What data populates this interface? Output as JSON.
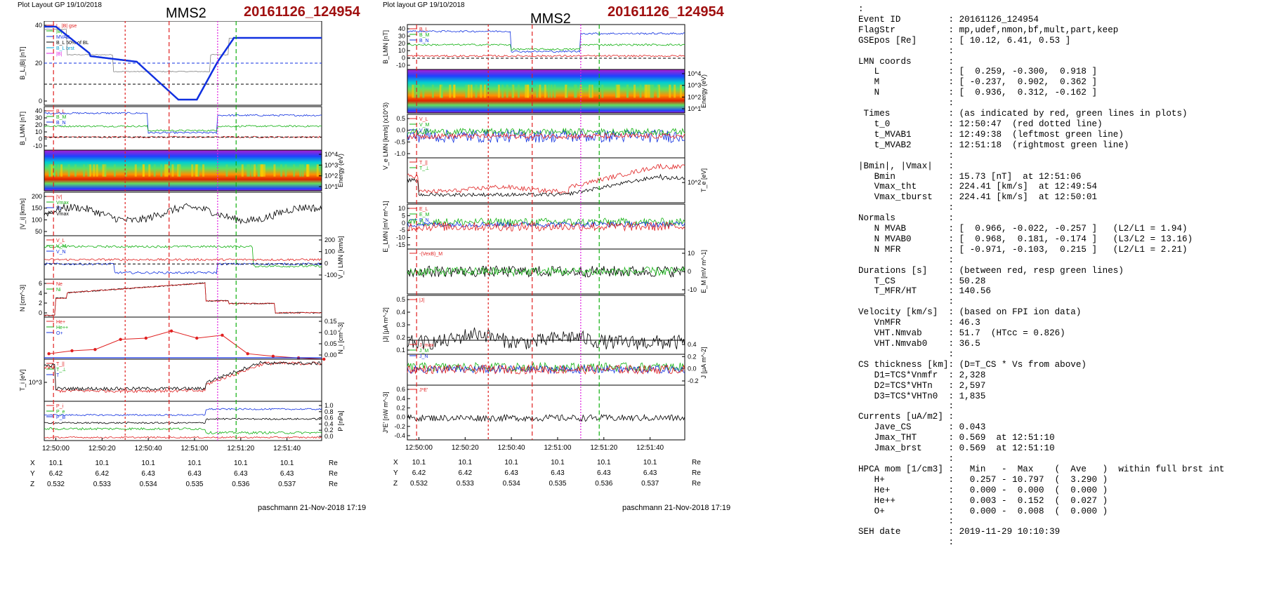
{
  "left_figure": {
    "header": "Plot Layout GP 19/10/2018",
    "title": "MMS2",
    "event_id": "20161126_124954",
    "footer": "paschmann 21-Nov-2018 17:19",
    "time_ticks": [
      "12:50:00",
      "12:50:20",
      "12:50:40",
      "12:51:00",
      "12:51:20",
      "12:51:40"
    ],
    "ephemeris": {
      "X": {
        "label": "X",
        "values": [
          "10.1",
          "10.1",
          "10.1",
          "10.1",
          "10.1",
          "10.1"
        ],
        "unit": "Re"
      },
      "Y": {
        "label": "Y",
        "values": [
          "6.42",
          "6.42",
          "6.43",
          "6.43",
          "6.43",
          "6.43"
        ],
        "unit": "Re"
      },
      "Z": {
        "label": "Z",
        "values": [
          "0.532",
          "0.533",
          "0.534",
          "0.535",
          "0.536",
          "0.537"
        ],
        "unit": "Re"
      }
    },
    "panels": [
      {
        "ylabel": "B_L,|B| [nT]",
        "ticks": [
          "40",
          "20",
          "0"
        ],
        "legend": [
          "L, |B| gse",
          "|B|",
          "MVAB",
          "B_L 50% of BL",
          "B_L brst",
          "|B|"
        ]
      },
      {
        "ylabel": "B_LMN [nT]",
        "ticks": [
          "40",
          "30",
          "20",
          "10",
          "0",
          "-10"
        ],
        "legend": [
          "B_L",
          "B_M",
          "B_N"
        ]
      },
      {
        "ylabel": "Energy (eV)",
        "ticks": [
          "10^4",
          "10^3",
          "10^2",
          "10^1"
        ]
      },
      {
        "ylabel": "|V_i| [km/s]",
        "ticks": [
          "200",
          "150",
          "100",
          "50"
        ],
        "legend": [
          "|V|",
          "Vmax",
          "Vt",
          "Vmax"
        ]
      },
      {
        "ylabel": "V_i LMN [km/s]",
        "ticks": [
          "200",
          "100",
          "0",
          "-100"
        ],
        "legend": [
          "V_L",
          "V_M",
          "V_N"
        ]
      },
      {
        "ylabel": "N [cm^-3]",
        "ticks": [
          "6",
          "4",
          "2",
          "0"
        ],
        "legend": [
          "Ne",
          "Ni"
        ]
      },
      {
        "ylabel": "N_i [cm^-3]",
        "ticks": [
          "0.15",
          "0.10",
          "0.05",
          "0.00"
        ],
        "legend": [
          "He+",
          "He++",
          "O+"
        ]
      },
      {
        "ylabel": "T_i [eV]",
        "ticks": [
          "10^3"
        ],
        "legend": [
          "T_||",
          "T_⊥",
          "T"
        ]
      },
      {
        "ylabel": "P [nPa]",
        "ticks": [
          "1.0",
          "0.8",
          "0.6",
          "0.4",
          "0.2",
          "0.0"
        ],
        "legend": [
          "P_i",
          "P_e",
          "P_B"
        ]
      }
    ]
  },
  "right_figure": {
    "header": "Plot layout GP 19/10/2018",
    "title": "MMS2",
    "event_id": "20161126_124954",
    "footer": "paschmann 21-Nov-2018 17:19",
    "time_ticks": [
      "12:50:00",
      "12:50:20",
      "12:50:40",
      "12:51:00",
      "12:51:20",
      "12:51:40"
    ],
    "ephemeris": {
      "X": {
        "label": "X",
        "values": [
          "10.1",
          "10.1",
          "10.1",
          "10.1",
          "10.1",
          "10.1"
        ],
        "unit": "Re"
      },
      "Y": {
        "label": "Y",
        "values": [
          "6.42",
          "6.42",
          "6.43",
          "6.43",
          "6.43",
          "6.43"
        ],
        "unit": "Re"
      },
      "Z": {
        "label": "Z",
        "values": [
          "0.532",
          "0.533",
          "0.534",
          "0.535",
          "0.536",
          "0.537"
        ],
        "unit": "Re"
      }
    },
    "panels": [
      {
        "ylabel": "B_LMN [nT]",
        "ticks": [
          "40",
          "30",
          "20",
          "10",
          "0",
          "-10"
        ],
        "legend": [
          "B_L",
          "B_M",
          "B_N"
        ]
      },
      {
        "ylabel": "Energy (eV)",
        "ticks": [
          "10^4",
          "10^3",
          "10^2",
          "10^1"
        ]
      },
      {
        "ylabel": "V_e LMN [km/s] (x10^3)",
        "ticks": [
          "0.5",
          "0.0",
          "-0.5",
          "-1.0"
        ],
        "legend": [
          "V_L",
          "V_M",
          "V_N"
        ]
      },
      {
        "ylabel": "T_e [eV]",
        "ticks": [
          "10^2"
        ],
        "legend": [
          "T_||",
          "T_⊥"
        ]
      },
      {
        "ylabel": "E_LMN [mV m^-1]",
        "ticks": [
          "10",
          "5",
          "0",
          "-5",
          "-10",
          "-15"
        ],
        "legend": [
          "E_L",
          "E_M",
          "E_N"
        ]
      },
      {
        "ylabel": "E_M [mV m^-1]",
        "ticks": [
          "10",
          "0",
          "-10"
        ],
        "legend": [
          "-(VexB)_M"
        ]
      },
      {
        "ylabel": "|J| [μA m^-2]",
        "ticks": [
          "0.5",
          "0.4",
          "0.3",
          "0.2",
          "0.1"
        ],
        "legend": [
          "|J|"
        ]
      },
      {
        "ylabel": "J [μA m^-2]",
        "ticks": [
          "0.4",
          "0.2",
          "0.0",
          "-0.2"
        ],
        "legend": [
          "J_max",
          "J_M",
          "J_N"
        ]
      },
      {
        "ylabel": "J*E' [nW m^-3]",
        "ticks": [
          "0.6",
          "0.4",
          "0.2",
          "0.0",
          "-0.2",
          "-0.4"
        ],
        "legend": [
          "J*E'"
        ]
      }
    ]
  },
  "info": {
    "lines": [
      ":",
      "Event ID         : 20161126_124954",
      "FlagStr          : mp,udef,nmon,bf,mult,part,keep",
      "GSEpos [Re]      : [ 10.12, 6.41, 0.53 ]",
      "                 :",
      "LMN coords       :",
      "   L             : [  0.259, -0.300,  0.918 ]",
      "   M             : [ -0.237,  0.902,  0.362 ]",
      "   N             : [  0.936,  0.312, -0.162 ]",
      "                 :",
      " Times           : (as indicated by red, green lines in plots)",
      "   t_0           : 12:50:47  (red dotted line)",
      "   t_MVAB1       : 12:49:38  (leftmost green line)",
      "   t_MVAB2       : 12:51:18  (rightmost green line)",
      "                 :",
      "|Bmin|, |Vmax|   :",
      "   Bmin          : 15.73 [nT]  at 12:51:06",
      "   Vmax_tht      : 224.41 [km/s]  at 12:49:54",
      "   Vmax_tburst   : 224.41 [km/s]  at 12:50:01",
      "                 :",
      "Normals          :",
      "   N MVAB        : [  0.966, -0.022, -0.257 ]   (L2/L1 = 1.94)",
      "   N MVAB0       : [  0.968,  0.181, -0.174 ]   (L3/L2 = 13.16)",
      "   N MFR         : [ -0.971, -0.103,  0.215 ]   (L2/L1 = 2.21)",
      "                 :",
      "Durations [s]    : (between red, resp green lines)",
      "   T_CS          : 50.28",
      "   T_MFR/HT      : 140.56",
      "                 :",
      "Velocity [km/s]  : (based on FPI ion data)",
      "   VnMFR         : 46.3",
      "   VHT.Nmvab     : 51.7  (HTcc = 0.826)",
      "   VHT.Nmvab0    : 36.5",
      "                 :",
      "CS thickness [km]: (D=T_CS * Vs from above)",
      "   D1=TCS*Vnmfr  : 2,328",
      "   D2=TCS*VHTn   : 2,597",
      "   D3=TCS*VHTn0  : 1,835",
      "                 :",
      "Currents [uA/m2] :",
      "   Jave_CS       : 0.043",
      "   Jmax_THT      : 0.569  at 12:51:10",
      "   Jmax_brst     : 0.569  at 12:51:10",
      "                 :",
      "HPCA mom [1/cm3] :   Min   -  Max    (  Ave   )  within full brst int",
      "   H+            :   0.257 - 10.797  (  3.290 )",
      "   He+           :   0.000 -  0.000  (  0.000 )",
      "   He++          :   0.003 -  0.152  (  0.027 )",
      "   O+            :   0.000 -  0.008  (  0.000 )",
      "                 :",
      "SEH date         : 2019-11-29 10:10:39",
      "                 :"
    ]
  },
  "chart_data": [
    {
      "type": "line",
      "title": "MMS2",
      "x_ticks": [
        "12:50:00",
        "12:50:20",
        "12:50:40",
        "12:51:00",
        "12:51:20",
        "12:51:40"
      ],
      "x_range": [
        "12:49:55",
        "12:51:55"
      ],
      "marker_times": {
        "red_dashed": [
          "12:49:59",
          "12:50:49",
          "12:51:03"
        ],
        "magenta_dotted": "12:51:10",
        "green_dashed": "12:51:18",
        "gray_dashed": [
          "12:49:58",
          "12:51:05"
        ]
      },
      "panel_B_L": {
        "ylabel": "B_L,|B| [nT]",
        "ylim": [
          -15,
          45
        ],
        "series": [
          {
            "name": "B_L",
            "color": "#1030e0",
            "t": [
              0,
              2,
              5,
              10,
              15,
              20,
              25,
              30,
              35,
              38,
              42,
              45,
              48,
              50,
              53,
              55,
              58,
              60,
              62,
              65,
              68,
              70,
              73,
              75,
              77,
              80,
              85,
              90,
              95,
              100,
              105,
              110,
              115,
              120
            ],
            "values": [
              41,
              42,
              41,
              35,
              30,
              24,
              20,
              18,
              17,
              18,
              20,
              20,
              17,
              12,
              5,
              0,
              -5,
              -10,
              -12,
              -12,
              -10,
              -8,
              -3,
              10,
              25,
              30,
              31,
              33,
              33,
              34,
              34,
              34,
              34,
              34
            ]
          },
          {
            "name": "|B|",
            "color": "#808080",
            "t": [
              0,
              10,
              20,
              30,
              40,
              50,
              55,
              60,
              65,
              70,
              75,
              80,
              90,
              100,
              110,
              120
            ],
            "values": [
              43,
              40,
              30,
              23,
              21,
              17,
              14,
              13,
              14,
              15,
              22,
              35,
              38,
              38,
              37,
              37
            ]
          }
        ],
        "reference_lines": [
          {
            "y": 15,
            "style": "blue dashed"
          },
          {
            "y": 0,
            "style": "black dashed"
          }
        ]
      },
      "panel_N": {
        "ylabel": "N [cm^-3]",
        "ylim": [
          0,
          7
        ],
        "series": [
          {
            "name": "Ni",
            "t": [
              0,
              5,
              10,
              20,
              30,
              40,
              50,
              60,
              65,
              70,
              75,
              80,
              90,
              100,
              110,
              120
            ],
            "values": [
              0.3,
              3.5,
              4.2,
              4.5,
              4.8,
              5.5,
              6.0,
              6.4,
              6.2,
              5.5,
              3.5,
              2.8,
              2.5,
              1.0,
              0.8,
              0.7
            ]
          }
        ]
      },
      "panel_Ni_minor": {
        "ylabel": "N_i [cm^-3]",
        "ylim": [
          0,
          0.15
        ],
        "series": [
          {
            "name": "He++",
            "color": "#e02020",
            "t": [
              2,
              12,
              22,
              33,
              44,
              55,
              66,
              77,
              88,
              99,
              110,
              121
            ],
            "values": [
              0.02,
              0.03,
              0.035,
              0.07,
              0.075,
              0.1,
              0.075,
              0.085,
              0.02,
              0.01,
              0.005,
              0.0
            ]
          },
          {
            "name": "He+",
            "color": "#10b010",
            "values": [
              0,
              0,
              0,
              0,
              0,
              0,
              0,
              0,
              0,
              0,
              0,
              0
            ]
          },
          {
            "name": "O+",
            "color": "#1030e0",
            "values": [
              0,
              0,
              0,
              0,
              0,
              0,
              0,
              0,
              0,
              0,
              0,
              0
            ]
          }
        ]
      }
    },
    {
      "type": "line",
      "title": "MMS2",
      "x_ticks": [
        "12:50:00",
        "12:50:20",
        "12:50:40",
        "12:51:00",
        "12:51:20",
        "12:51:40"
      ],
      "x_range": [
        "12:49:55",
        "12:51:55"
      ],
      "panel_J_abs": {
        "ylabel": "|J| [μA m^-2]",
        "ylim": [
          0,
          0.55
        ],
        "peak": {
          "value": 0.569,
          "time": "12:51:10"
        }
      },
      "panel_JE": {
        "ylabel": "J*E' [nW m^-3]",
        "ylim": [
          -0.5,
          0.65
        ]
      }
    }
  ]
}
